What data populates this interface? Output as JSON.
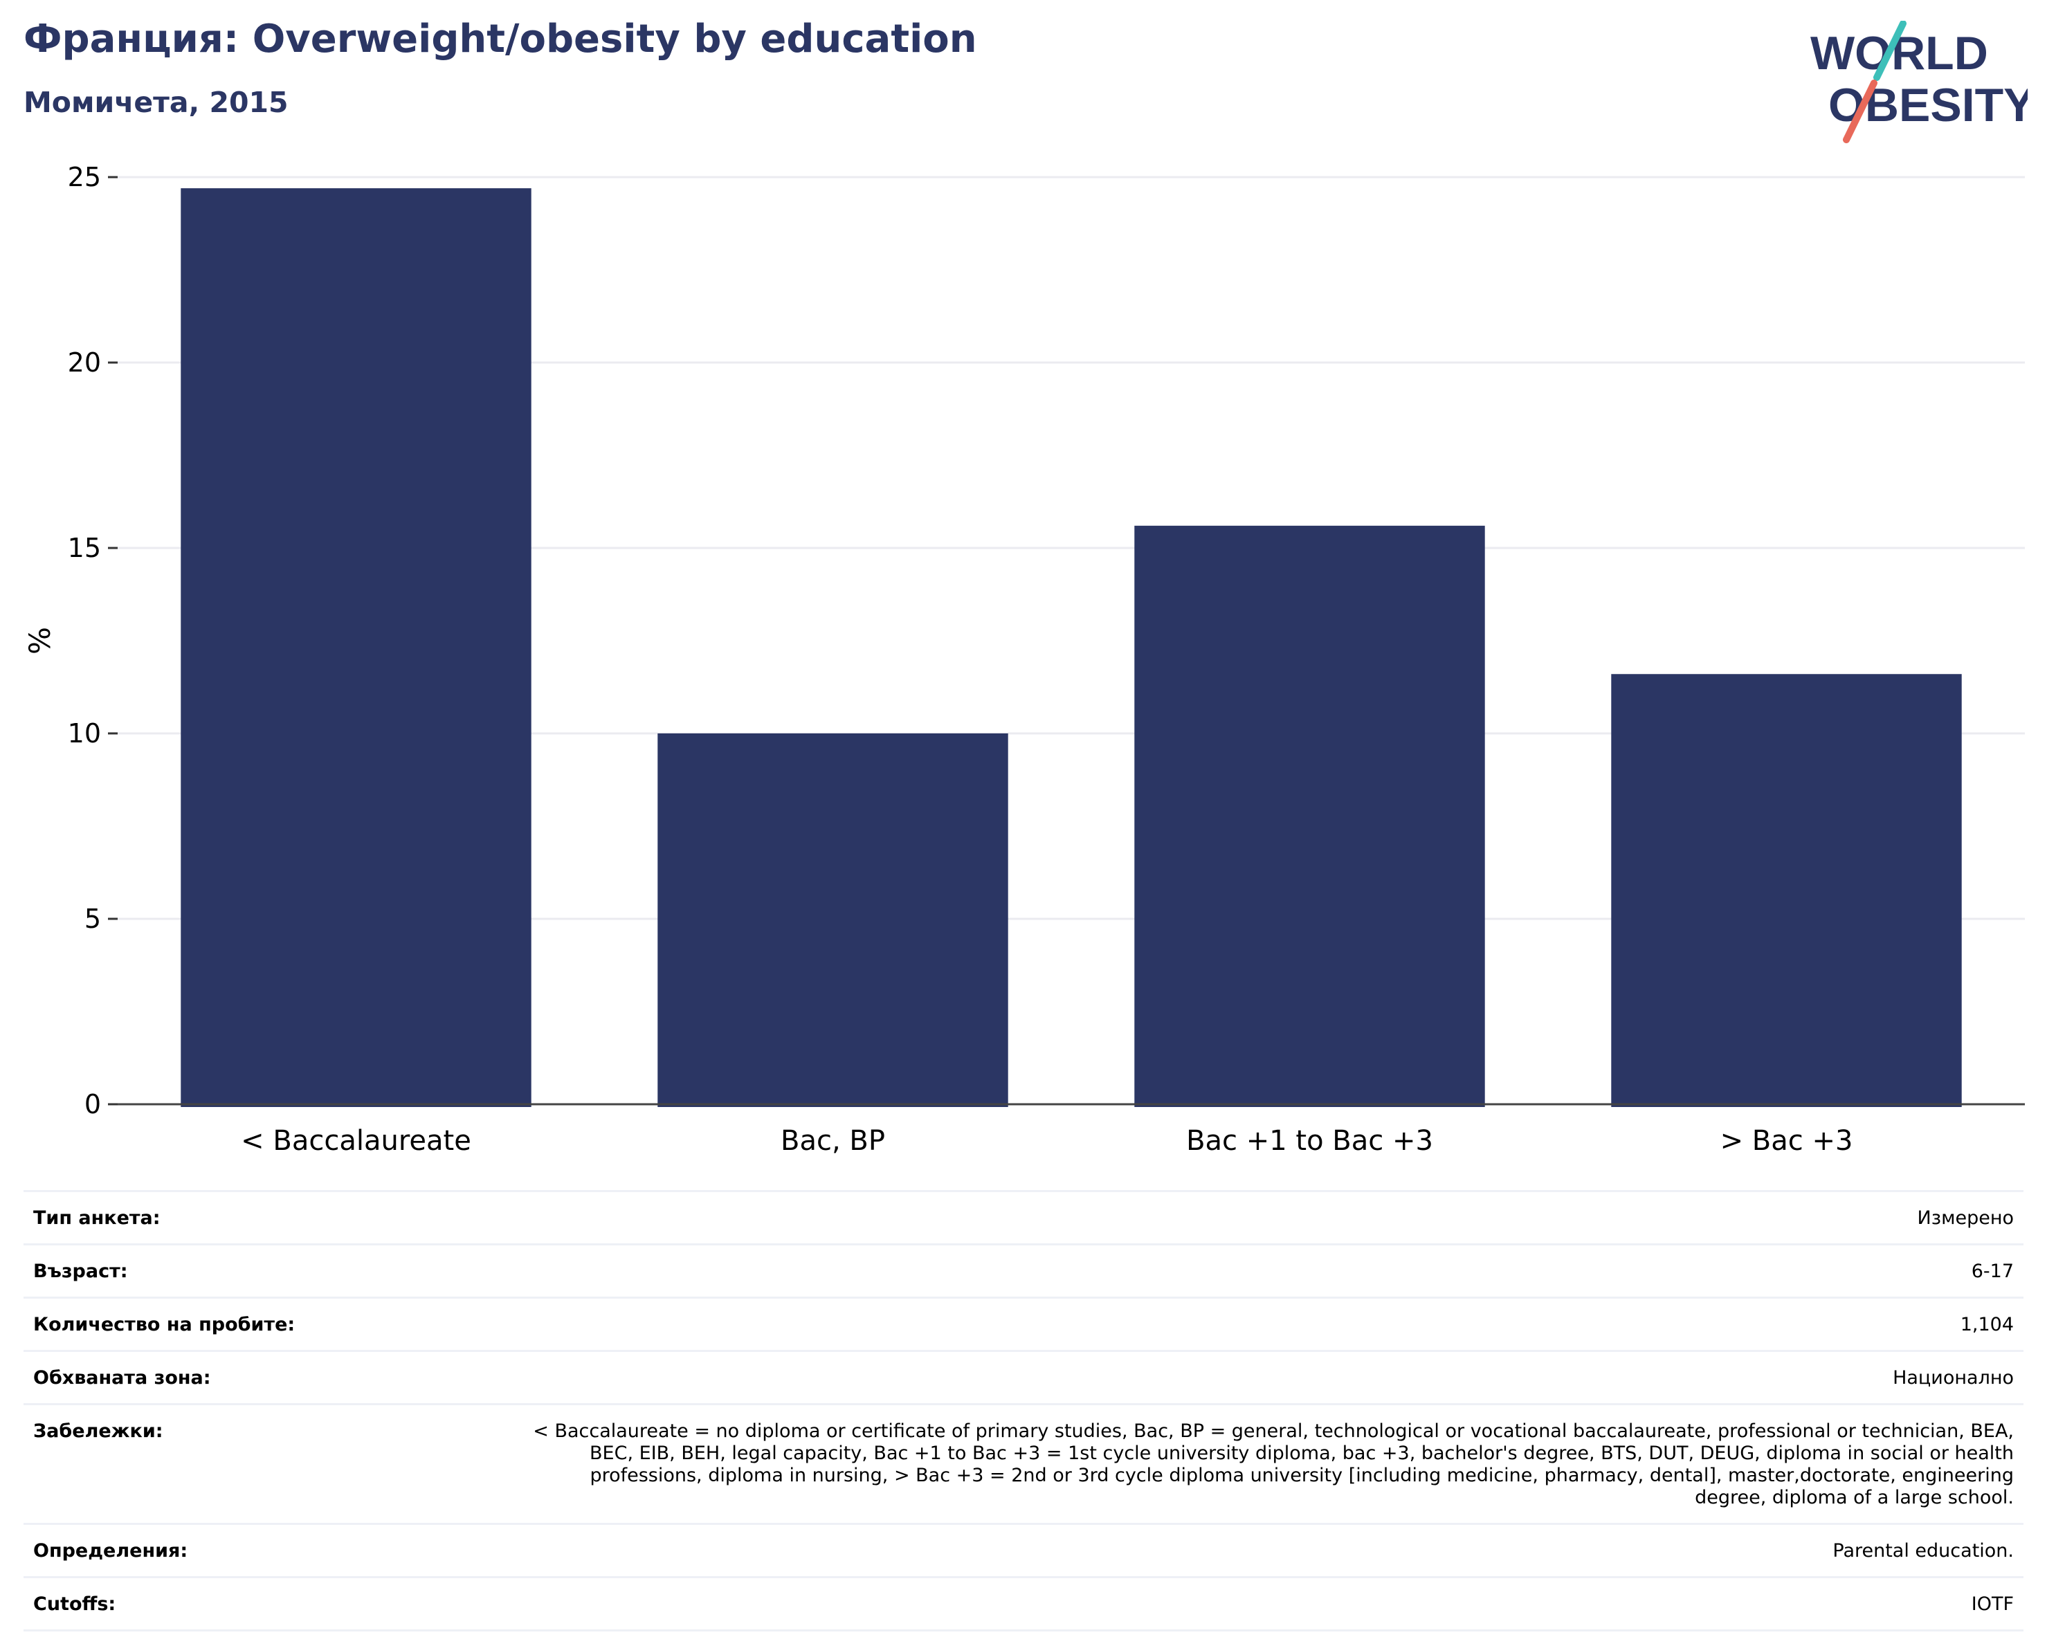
{
  "header": {
    "title": "Франция: Overweight/obesity by education",
    "subtitle": "Момичета, 2015"
  },
  "logo": {
    "line1": "WORLD",
    "line2": "OBESITY",
    "colors": {
      "text": "#2b3664",
      "slash_teal": "#3dbfb9",
      "slash_red": "#e8695a"
    }
  },
  "chart_data": {
    "type": "bar",
    "categories": [
      "< Baccalaureate",
      "Bac, BP",
      "Bac +1 to Bac +3",
      "> Bac +3"
    ],
    "values": [
      24.7,
      10.0,
      15.6,
      11.6
    ],
    "ylabel": "%",
    "xlabel": "",
    "ylim": [
      0,
      25
    ],
    "yticks": [
      0,
      5,
      10,
      15,
      20,
      25
    ],
    "grid": true,
    "bar_color": "#2b3664"
  },
  "info_table": [
    {
      "label": "Тип анкета:",
      "value": "Измерено"
    },
    {
      "label": "Възраст:",
      "value": "6-17"
    },
    {
      "label": "Количество на пробите:",
      "value": "1,104"
    },
    {
      "label": "Обхваната зона:",
      "value": "Национално"
    },
    {
      "label": "Забележки:",
      "value": "< Baccalaureate = no diploma or certificate of primary studies, Bac, BP = general, technological or vocational baccalaureate, professional or technician, BEA, BEC, EIB, BEH, legal capacity, Bac +1 to Bac +3 = 1st cycle university diploma, bac +3, bachelor's degree, BTS, DUT, DEUG, diploma in social or health professions, diploma in nursing, > Bac +3 = 2nd or 3rd cycle diploma university [including medicine, pharmacy, dental], master,doctorate, engineering degree, diploma of a large school."
    },
    {
      "label": "Определения:",
      "value": "Parental education."
    },
    {
      "label": "Cutoffs:",
      "value": "IOTF"
    }
  ]
}
